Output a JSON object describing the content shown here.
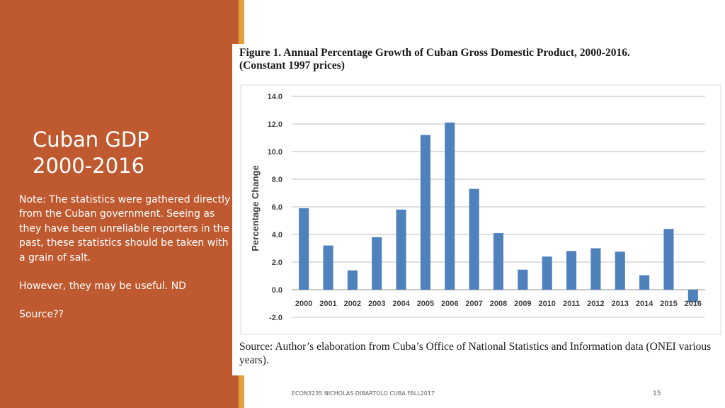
{
  "slide": {
    "title_line1": "Cuban GDP",
    "title_line2": "2000-2016",
    "note": "Note: The statistics were gathered directly from the Cuban government. Seeing as they have been unreliable reporters in the past, these statistics should be taken with a grain of salt.",
    "note2": "However, they may be useful. ND",
    "note3": "Source??",
    "footer": "ECON3235 NICHOLAS DIBARTOLO CUBA  FALL2017",
    "page_number": "15",
    "panel_color": "#bf5a30",
    "accent_color": "#e3a03a"
  },
  "figure": {
    "title_line1": "Figure 1. Annual Percentage Growth of Cuban Gross Domestic Product, 2000-2016.",
    "title_line2": "(Constant 1997 prices)",
    "source": "Source: Author’s elaboration from Cuba’s Office of National Statistics and Information data (ONEI various years)."
  },
  "chart_data": {
    "type": "bar",
    "categories": [
      "2000",
      "2001",
      "2002",
      "2003",
      "2004",
      "2005",
      "2006",
      "2007",
      "2008",
      "2009",
      "2010",
      "2011",
      "2012",
      "2013",
      "2014",
      "2015",
      "2016"
    ],
    "values": [
      5.9,
      3.2,
      1.4,
      3.8,
      5.8,
      11.2,
      12.1,
      7.3,
      4.1,
      1.45,
      2.4,
      2.8,
      3.0,
      2.75,
      1.05,
      4.4,
      -0.9
    ],
    "ylabel": "Percentage Change",
    "ylim": [
      -2.0,
      14.0
    ],
    "yticks": [
      "14.0",
      "12.0",
      "10.0",
      "8.0",
      "6.0",
      "4.0",
      "2.0",
      "0.0",
      "-2.0"
    ],
    "grid": true,
    "bar_color": "#4f81bd"
  }
}
